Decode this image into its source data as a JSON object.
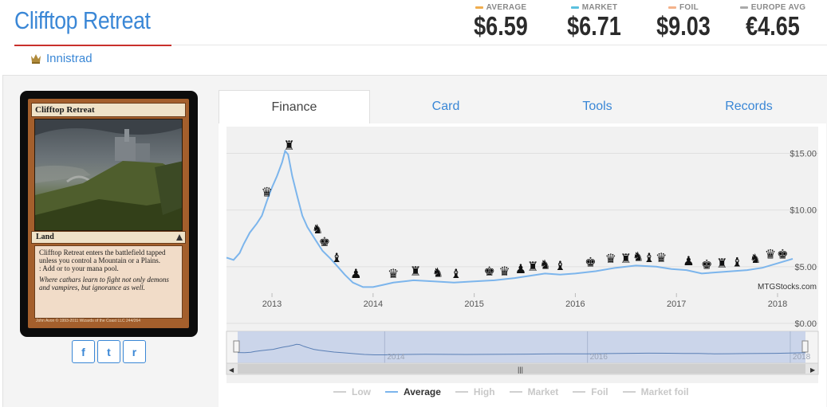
{
  "card": {
    "title": "Clifftop Retreat",
    "set_name": "Innistrad",
    "name_line": "Clifftop Retreat",
    "type_line": "Land",
    "rules_text_1": "Clifftop Retreat enters the battlefield tapped unless you control a Mountain or a Plains.",
    "rules_text_2": ": Add  or  to your mana pool.",
    "flavor_text": "Where cathars learn to fight not only demons and vampires, but ignorance as well.",
    "artist": "John Avon",
    "copyright": "© 1993-2011 Wizards of the Coast LLC 244/264"
  },
  "prices": [
    {
      "label": "AVERAGE",
      "value": "$6.59",
      "color": "#f0ad4e"
    },
    {
      "label": "MARKET",
      "value": "$6.71",
      "color": "#5bc0de"
    },
    {
      "label": "FOIL",
      "value": "$9.03",
      "color": "#f4b28a"
    },
    {
      "label": "EUROPE AVG",
      "value": "€4.65",
      "color": "#aaaaaa"
    }
  ],
  "share": {
    "facebook": "f",
    "twitter": "t",
    "reddit": "r"
  },
  "tabs": [
    {
      "label": "Finance",
      "active": true
    },
    {
      "label": "Card",
      "active": false
    },
    {
      "label": "Tools",
      "active": false
    },
    {
      "label": "Records",
      "active": false
    }
  ],
  "chart_data": {
    "type": "line",
    "title": "",
    "xlabel": "",
    "ylabel": "",
    "credit": "MTGStocks.com",
    "y_ticks": [
      "$15.00",
      "$10.00",
      "$5.00",
      "$0.00"
    ],
    "x_ticks": [
      "2013",
      "2014",
      "2015",
      "2016",
      "2017",
      "2018"
    ],
    "ylim": [
      0,
      17
    ],
    "xlim": [
      2012.55,
      2018.15
    ],
    "series": [
      {
        "name": "Average",
        "color": "#7cb5ec",
        "x": [
          2012.55,
          2012.62,
          2012.68,
          2012.72,
          2012.78,
          2012.85,
          2012.9,
          2012.95,
          2013.0,
          2013.05,
          2013.1,
          2013.13,
          2013.16,
          2013.2,
          2013.25,
          2013.3,
          2013.35,
          2013.42,
          2013.5,
          2013.58,
          2013.65,
          2013.72,
          2013.8,
          2013.9,
          2014.0,
          2014.1,
          2014.2,
          2014.4,
          2014.6,
          2014.8,
          2015.0,
          2015.2,
          2015.4,
          2015.55,
          2015.7,
          2015.85,
          2016.0,
          2016.2,
          2016.4,
          2016.6,
          2016.8,
          2016.95,
          2017.1,
          2017.25,
          2017.4,
          2017.55,
          2017.7,
          2017.85,
          2018.0,
          2018.15
        ],
        "y": [
          5.8,
          5.6,
          6.2,
          7.0,
          8.0,
          8.8,
          9.5,
          10.8,
          12.0,
          13.0,
          14.2,
          15.2,
          14.9,
          13.0,
          11.2,
          9.5,
          8.5,
          7.5,
          6.4,
          5.7,
          5.0,
          4.3,
          3.6,
          3.2,
          3.2,
          3.4,
          3.6,
          3.8,
          3.7,
          3.6,
          3.7,
          3.8,
          4.0,
          4.2,
          4.4,
          4.3,
          4.4,
          4.6,
          4.9,
          5.1,
          5.0,
          4.8,
          4.7,
          4.4,
          4.5,
          4.6,
          4.7,
          4.9,
          5.3,
          5.7
        ]
      }
    ],
    "legend": [
      "Low",
      "Average",
      "High",
      "Market",
      "Foil",
      "Market foil"
    ],
    "legend_active": "Average",
    "navigator_labels": [
      "2014",
      "2016",
      "2018"
    ]
  }
}
